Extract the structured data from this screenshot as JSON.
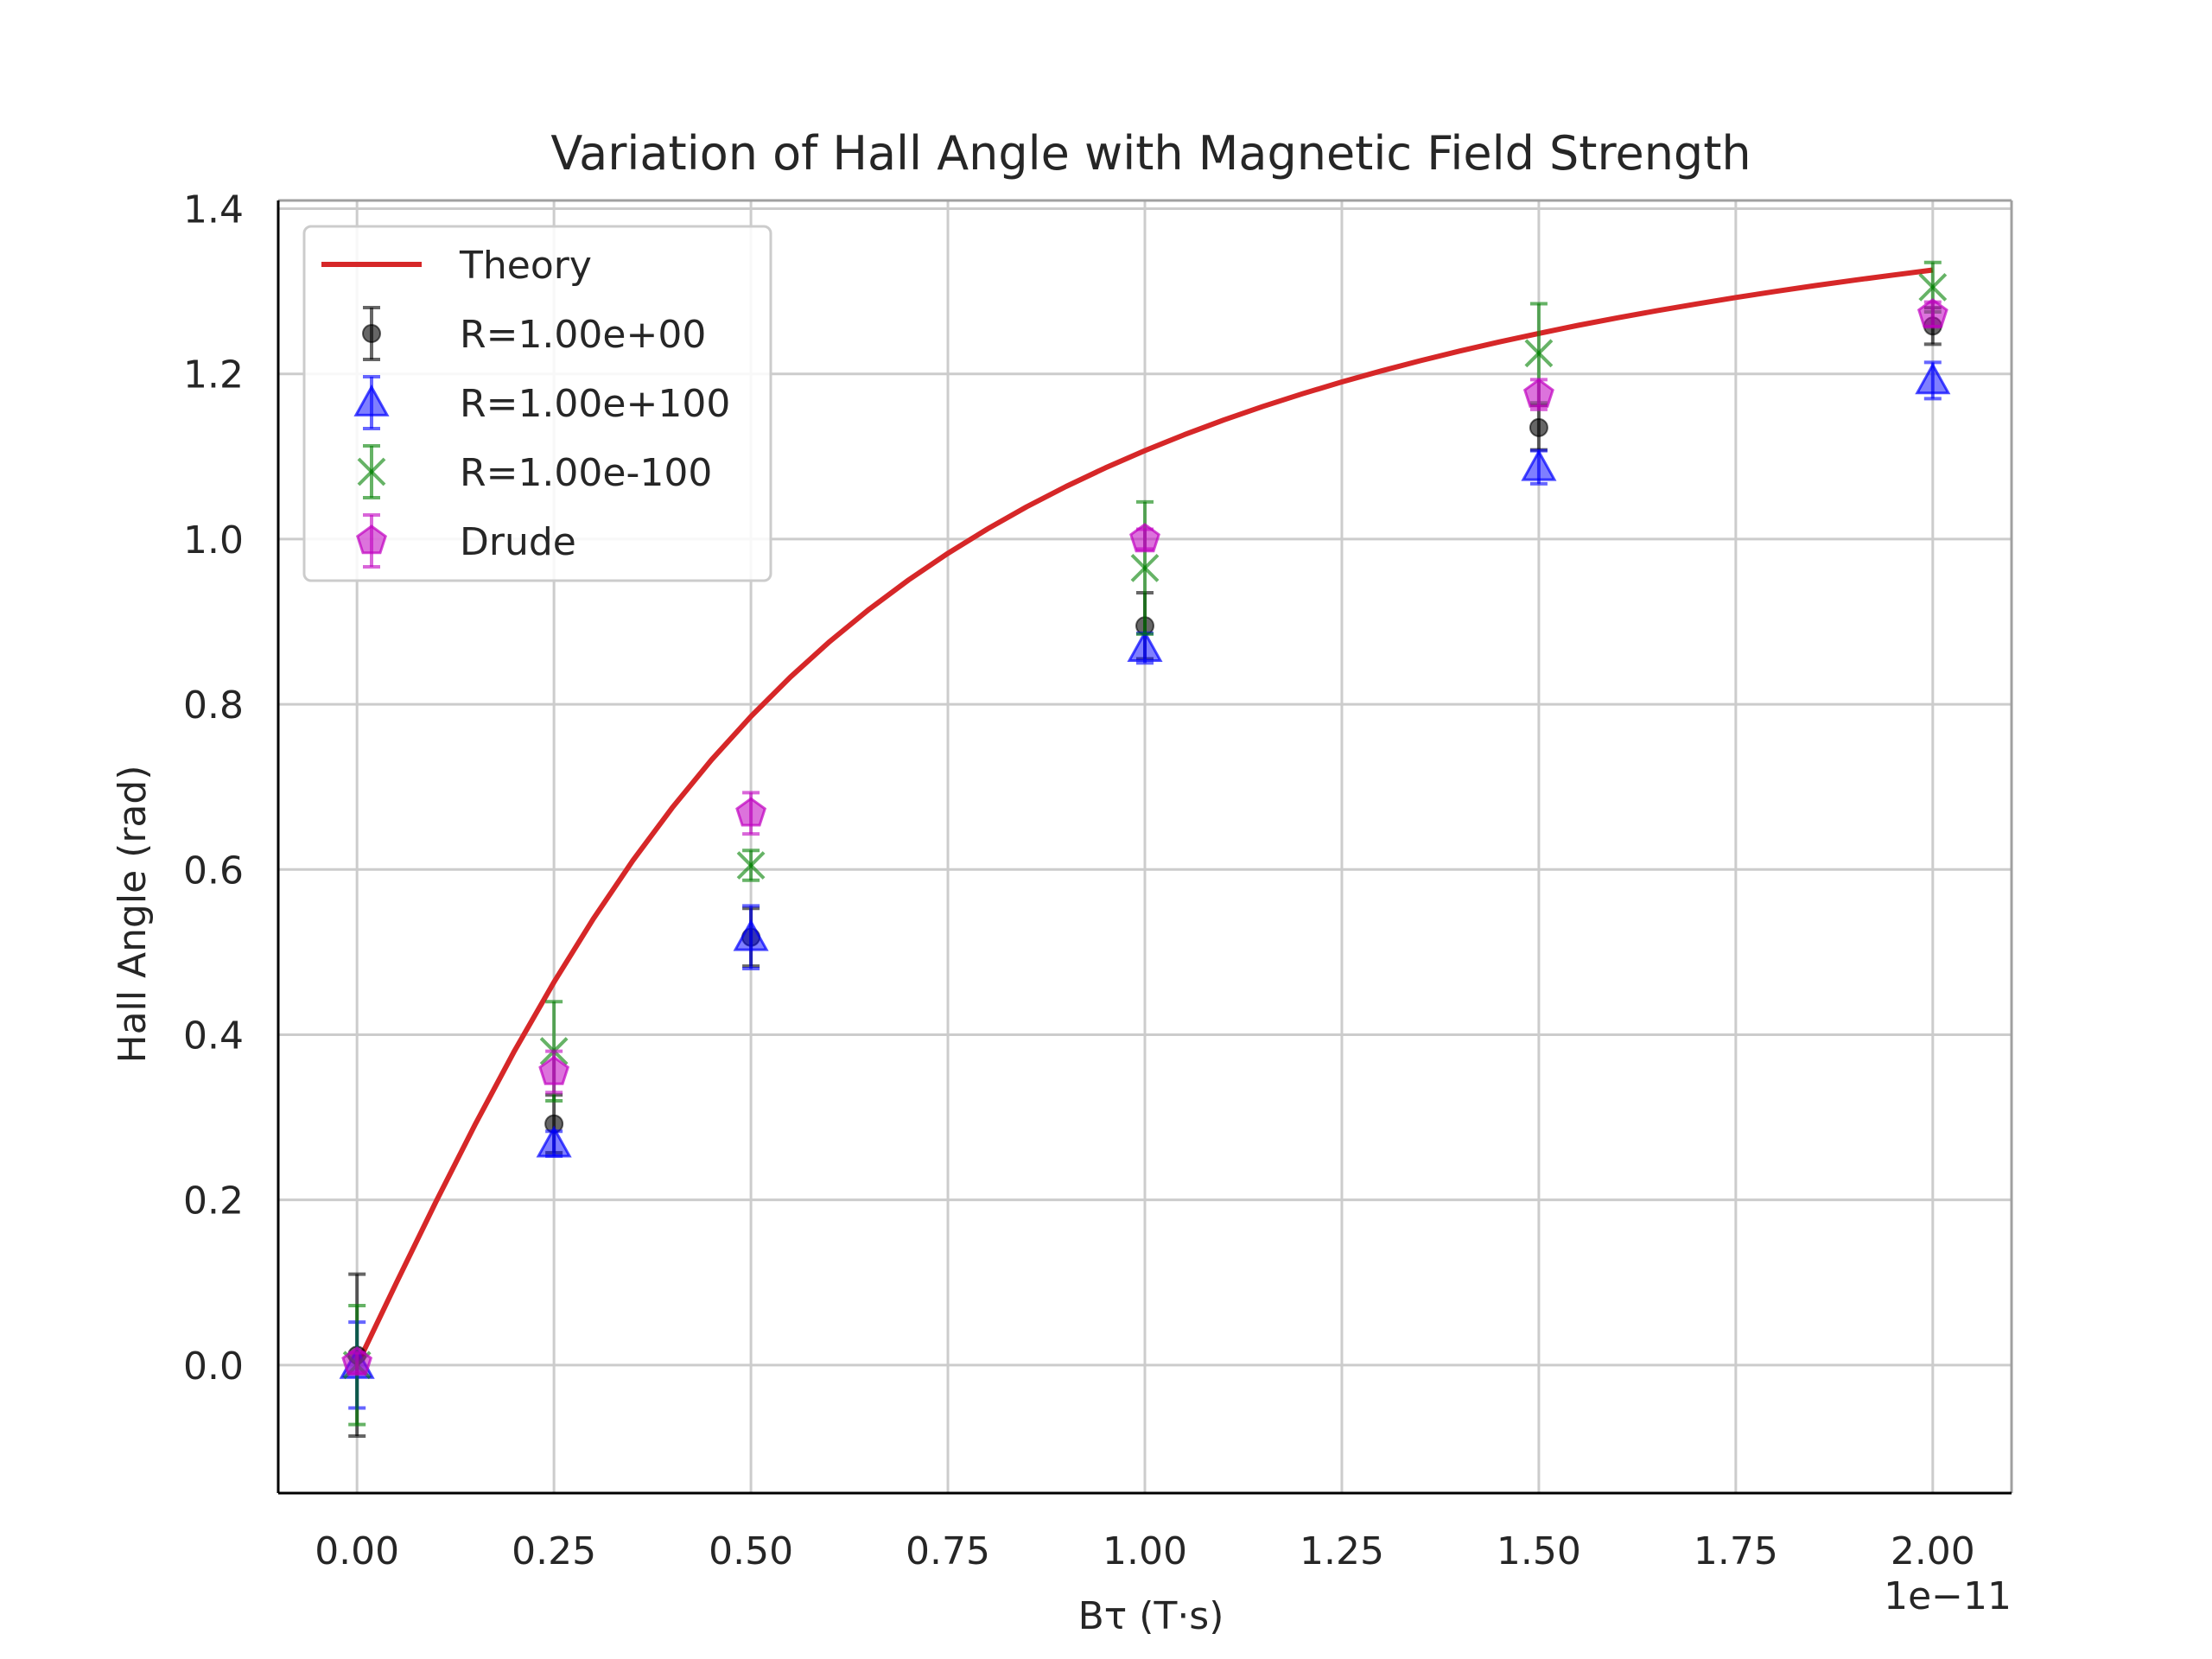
{
  "chart_data": {
    "type": "scatter",
    "title": "Variation of Hall Angle with Magnetic Field Strength",
    "xlabel": "Bτ (T·s)",
    "ylabel": "Hall Angle (rad)",
    "x_offset_text": "1e−11",
    "xlim": [
      -0.1,
      2.1
    ],
    "ylim": [
      -0.155,
      1.41
    ],
    "x_ticks": [
      0.0,
      0.25,
      0.5,
      0.75,
      1.0,
      1.25,
      1.5,
      1.75,
      2.0
    ],
    "x_tick_labels": [
      "0.00",
      "0.25",
      "0.50",
      "0.75",
      "1.00",
      "1.25",
      "1.50",
      "1.75",
      "2.00"
    ],
    "y_ticks": [
      0.0,
      0.2,
      0.4,
      0.6,
      0.8,
      1.0,
      1.2,
      1.4
    ],
    "y_tick_labels": [
      "0.0",
      "0.2",
      "0.4",
      "0.6",
      "0.8",
      "1.0",
      "1.2",
      "1.4"
    ],
    "grid": true,
    "legend_position": "top-left",
    "theory": {
      "name": "Theory",
      "color": "#d62728",
      "x": [
        0.0,
        0.05,
        0.1,
        0.15,
        0.2,
        0.25,
        0.3,
        0.35,
        0.4,
        0.45,
        0.5,
        0.55,
        0.6,
        0.65,
        0.7,
        0.75,
        0.8,
        0.85,
        0.9,
        0.95,
        1.0,
        1.05,
        1.1,
        1.15,
        1.2,
        1.25,
        1.3,
        1.35,
        1.4,
        1.45,
        1.5,
        1.55,
        1.6,
        1.65,
        1.7,
        1.75,
        1.8,
        1.85,
        1.9,
        1.95,
        2.0
      ],
      "y": [
        0.0,
        0.0997,
        0.1974,
        0.2915,
        0.3805,
        0.4636,
        0.5404,
        0.6107,
        0.6747,
        0.7328,
        0.7854,
        0.833,
        0.8761,
        0.9151,
        0.9505,
        0.9828,
        1.0122,
        1.0391,
        1.0637,
        1.0863,
        1.1071,
        1.1264,
        1.1442,
        1.1607,
        1.176,
        1.1903,
        1.2036,
        1.2161,
        1.2278,
        1.2388,
        1.249,
        1.2588,
        1.2679,
        1.2765,
        1.2847,
        1.2925,
        1.2998,
        1.3068,
        1.3134,
        1.3197,
        1.3258
      ]
    },
    "series": [
      {
        "name": "R=1.00e+00",
        "marker": "circle",
        "color": "#000000",
        "x": [
          0.0,
          0.25,
          0.5,
          1.0,
          1.5,
          2.0
        ],
        "y": [
          0.012,
          0.292,
          0.518,
          0.895,
          1.135,
          1.258
        ],
        "err": [
          0.098,
          0.035,
          0.035,
          0.04,
          0.027,
          0.022
        ]
      },
      {
        "name": "R=1.00e+100",
        "marker": "triangle",
        "color": "#0000ff",
        "x": [
          0.0,
          0.25,
          0.5,
          1.0,
          1.5,
          2.0
        ],
        "y": [
          0.0,
          0.268,
          0.518,
          0.868,
          1.087,
          1.192
        ],
        "err": [
          0.052,
          0.015,
          0.038,
          0.018,
          0.02,
          0.022
        ]
      },
      {
        "name": "R=1.00e-100",
        "marker": "x",
        "color": "#008000",
        "x": [
          0.0,
          0.25,
          0.5,
          1.0,
          1.5,
          2.0
        ],
        "y": [
          0.0,
          0.38,
          0.605,
          0.965,
          1.225,
          1.305
        ],
        "err": [
          0.072,
          0.06,
          0.018,
          0.08,
          0.06,
          0.03
        ]
      },
      {
        "name": "Drude",
        "marker": "pentagon",
        "color": "#c000c0",
        "x": [
          0.0,
          0.25,
          0.5,
          1.0,
          1.5,
          2.0
        ],
        "y": [
          0.003,
          0.355,
          0.668,
          1.0,
          1.175,
          1.272
        ],
        "err": [
          0.012,
          0.025,
          0.025,
          0.012,
          0.018,
          0.015
        ]
      }
    ],
    "legend": [
      "Theory",
      "R=1.00e+00",
      "R=1.00e+100",
      "R=1.00e-100",
      "Drude"
    ]
  }
}
